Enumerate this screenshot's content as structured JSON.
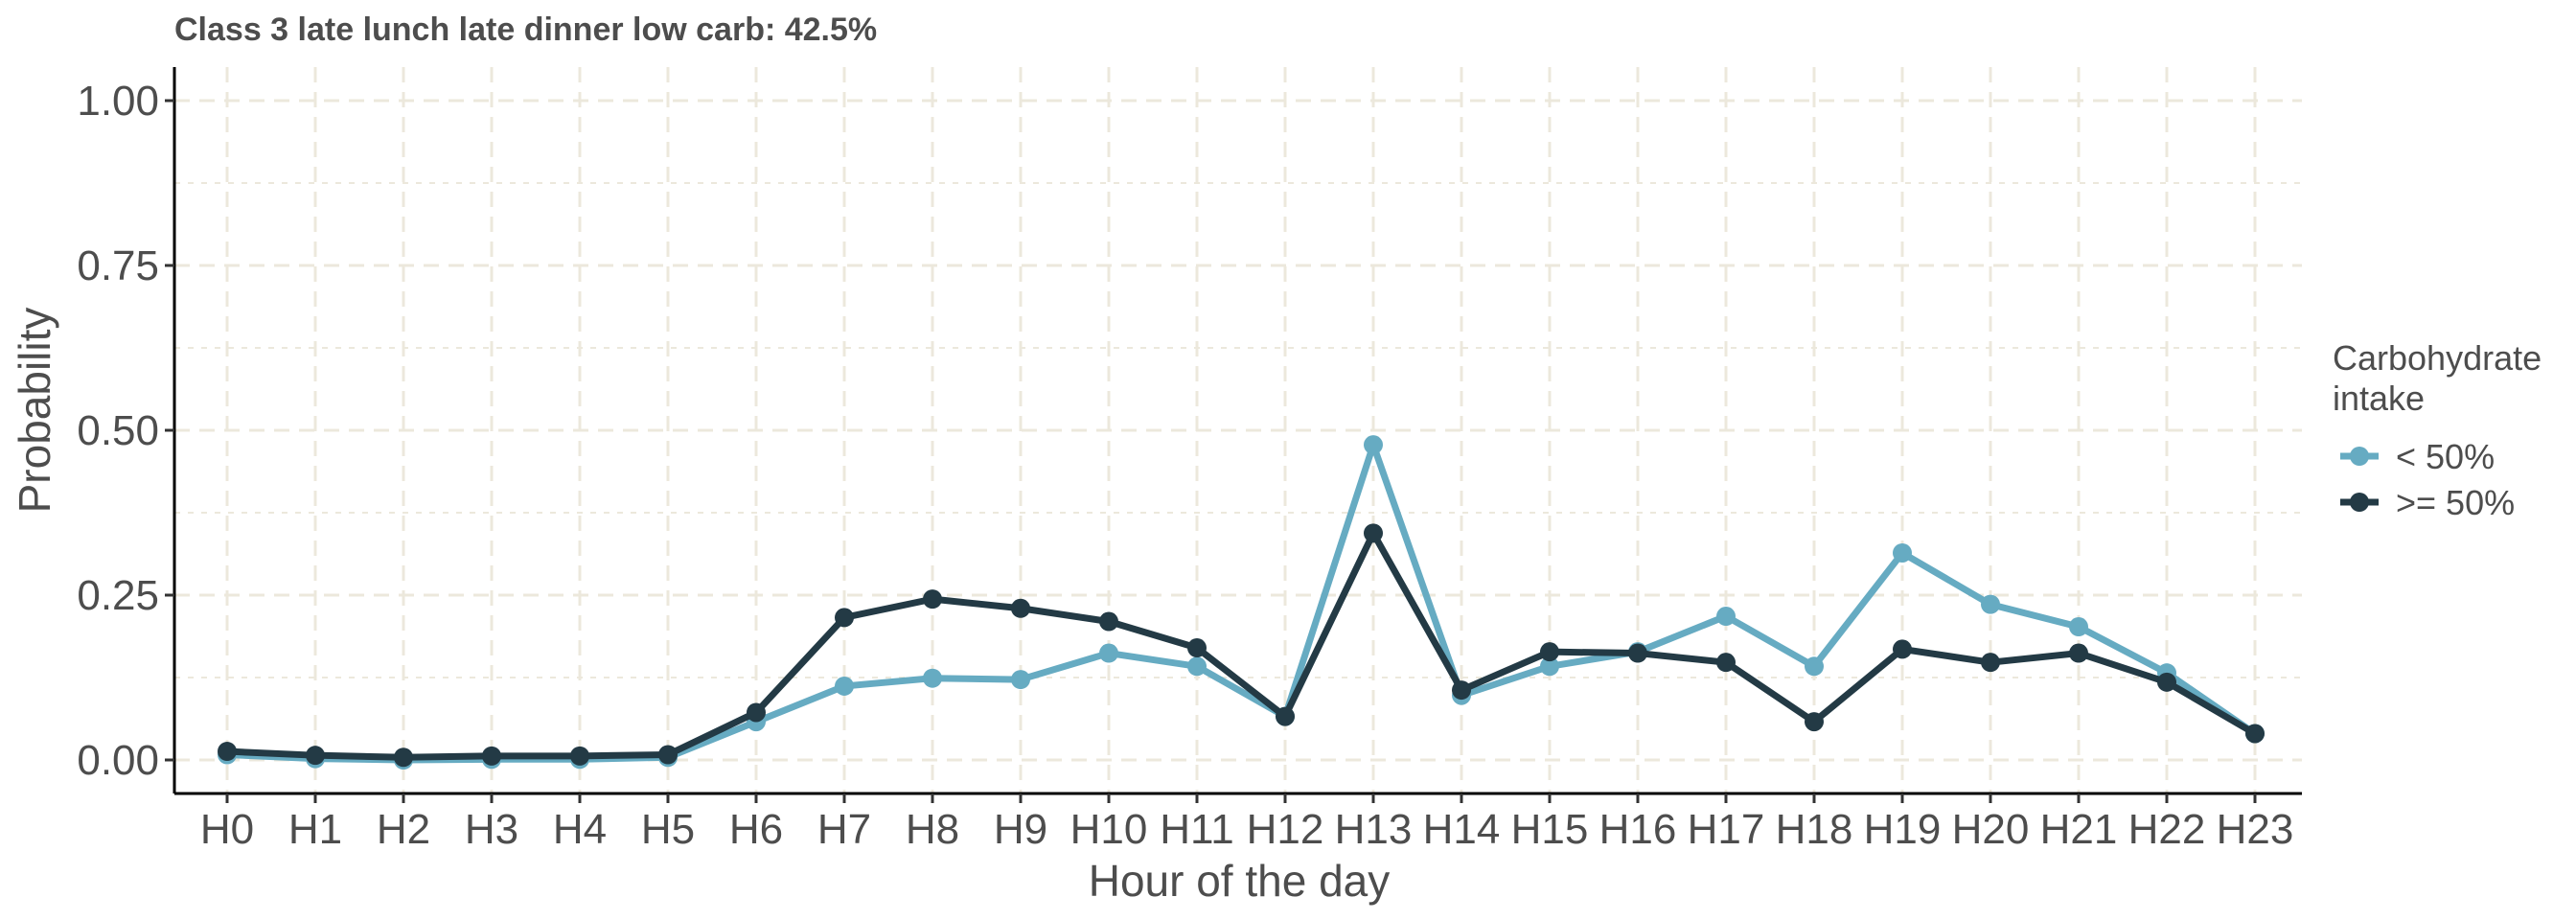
{
  "chart_data": {
    "type": "line",
    "title": "Class 3 late lunch late dinner low carb: 42.5%",
    "xlabel": "Hour of the day",
    "ylabel": "Probability",
    "categories": [
      "H0",
      "H1",
      "H2",
      "H3",
      "H4",
      "H5",
      "H6",
      "H7",
      "H8",
      "H9",
      "H10",
      "H11",
      "H12",
      "H13",
      "H14",
      "H15",
      "H16",
      "H17",
      "H18",
      "H19",
      "H20",
      "H21",
      "H22",
      "H23"
    ],
    "ylim": [
      0,
      1.0
    ],
    "yticks": [
      "0.00",
      "0.25",
      "0.50",
      "0.75",
      "1.00"
    ],
    "grid": "dashed",
    "legend": {
      "title_lines": [
        "Carbohydrate",
        "intake"
      ],
      "placement": "right"
    },
    "series": [
      {
        "name": "< 50%",
        "color": "#66abc2",
        "values": [
          0.008,
          0.002,
          0.0,
          0.001,
          0.001,
          0.004,
          0.058,
          0.112,
          0.124,
          0.122,
          0.162,
          0.142,
          0.066,
          0.478,
          0.098,
          0.142,
          0.164,
          0.218,
          0.142,
          0.314,
          0.236,
          0.202,
          0.132,
          0.04
        ]
      },
      {
        "name": ">= 50%",
        "color": "#233a45",
        "values": [
          0.013,
          0.007,
          0.004,
          0.006,
          0.006,
          0.008,
          0.072,
          0.216,
          0.244,
          0.23,
          0.21,
          0.17,
          0.066,
          0.344,
          0.106,
          0.164,
          0.162,
          0.148,
          0.058,
          0.168,
          0.148,
          0.162,
          0.118,
          0.04
        ]
      }
    ]
  }
}
